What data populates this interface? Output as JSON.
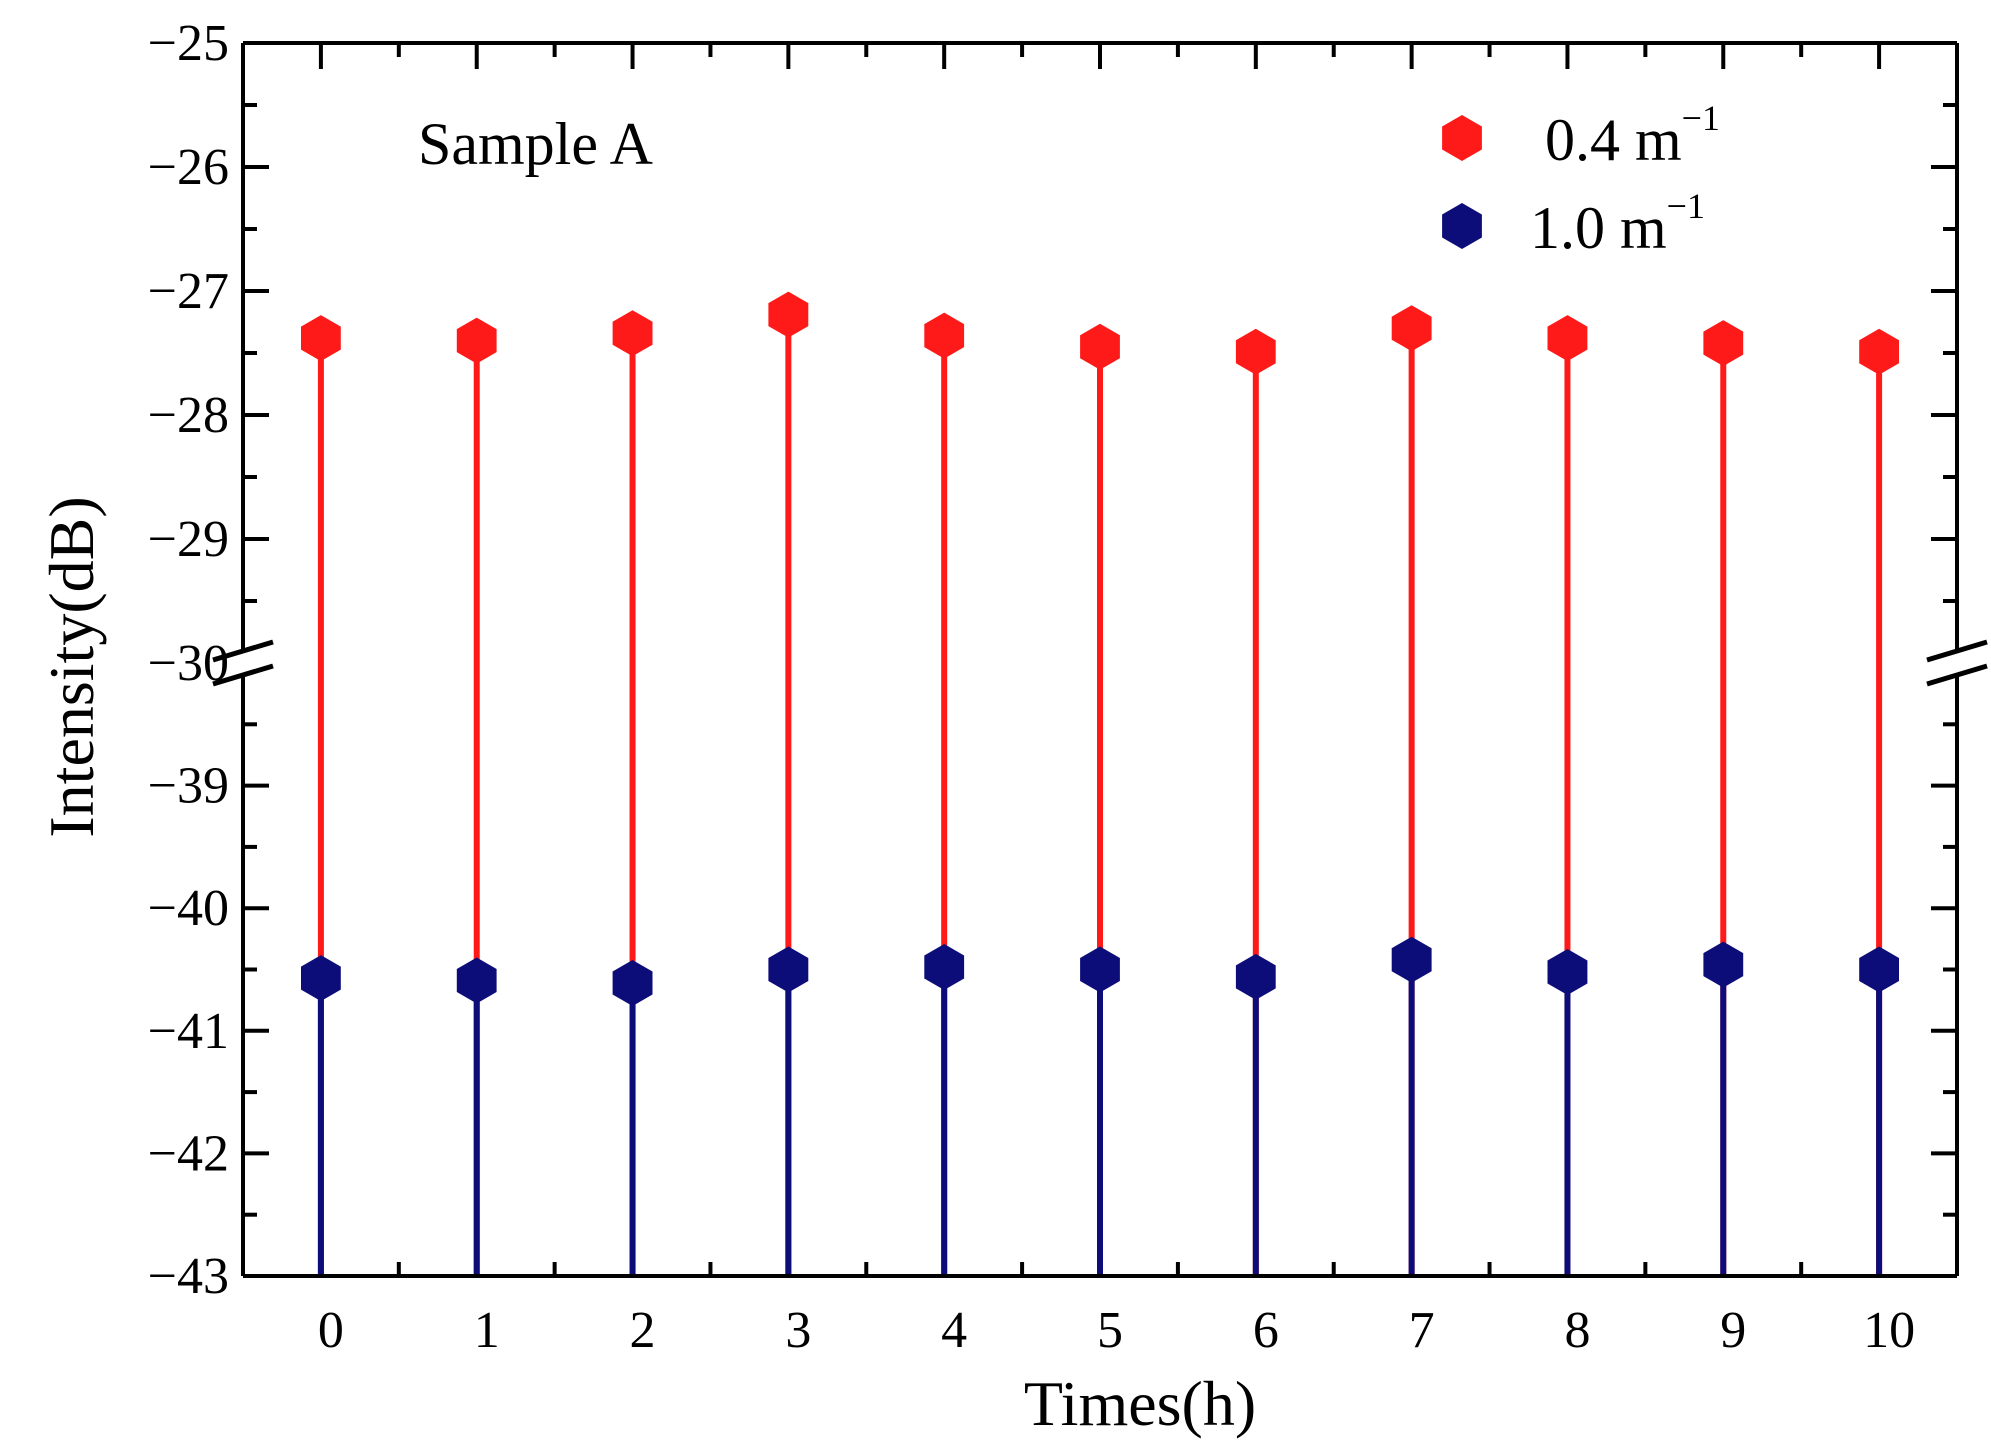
{
  "chart_data": {
    "type": "scatter",
    "style": "stem",
    "xlabel": "Times(h)",
    "ylabel": "Intensity(dB)",
    "annotation": "Sample A",
    "x_ticks": [
      "0",
      "1",
      "2",
      "3",
      "4",
      "5",
      "6",
      "7",
      "8",
      "9",
      "10"
    ],
    "xlim": [
      -0.5,
      10.5
    ],
    "y_axis_broken": true,
    "y_upper_segment": {
      "ylim": [
        -30,
        -25
      ],
      "ticks": [
        "−25",
        "−26",
        "−27",
        "−28",
        "−29",
        "−30"
      ]
    },
    "y_lower_segment": {
      "ylim": [
        -43,
        -38
      ],
      "ticks": [
        "−39",
        "−40",
        "−41",
        "−42",
        "−43"
      ]
    },
    "series": [
      {
        "name": "0.4 m",
        "superscript": "−1",
        "color": "#ff1a1a",
        "x": [
          0,
          1,
          2,
          3,
          4,
          5,
          6,
          7,
          8,
          9,
          10
        ],
        "values": [
          -27.38,
          -27.4,
          -27.34,
          -27.19,
          -27.36,
          -27.45,
          -27.49,
          -27.3,
          -27.38,
          -27.42,
          -27.49
        ]
      },
      {
        "name": "1.0 m",
        "superscript": "−1",
        "color": "#0d0d7a",
        "x": [
          0,
          1,
          2,
          3,
          4,
          5,
          6,
          7,
          8,
          9,
          10
        ],
        "values": [
          -40.57,
          -40.59,
          -40.61,
          -40.5,
          -40.48,
          -40.5,
          -40.56,
          -40.42,
          -40.52,
          -40.46,
          -40.5
        ]
      }
    ]
  }
}
